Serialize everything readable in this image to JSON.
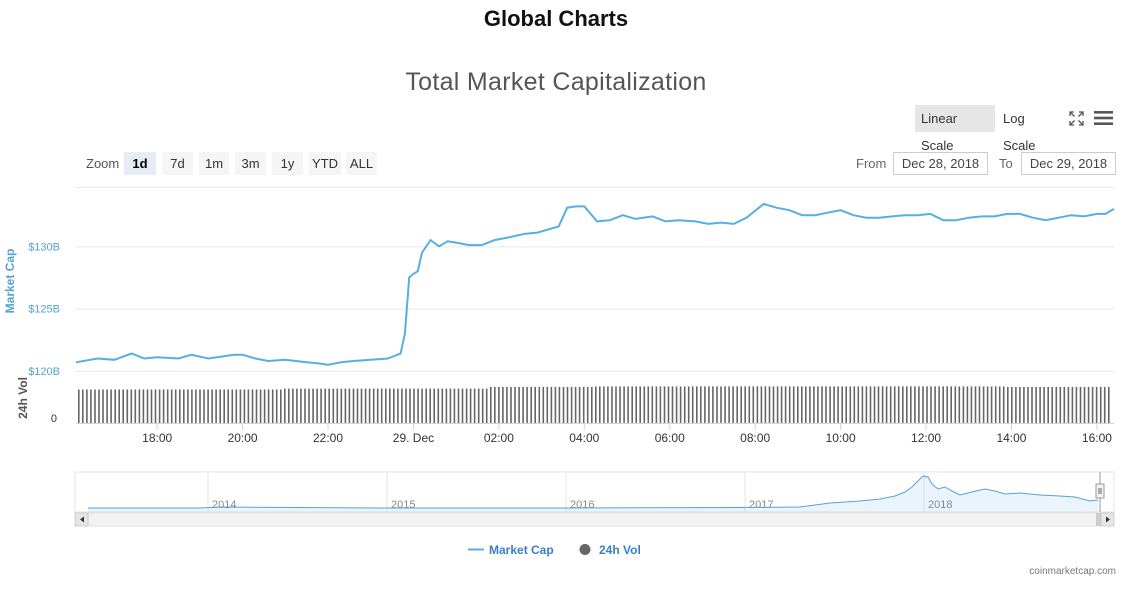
{
  "page": {
    "title": "Global Charts"
  },
  "toolbar": {
    "linear_scale": "Linear Scale",
    "log_scale": "Log Scale",
    "fullscreen_icon": "fullscreen-icon",
    "menu_icon": "hamburger-menu-icon"
  },
  "zoom": {
    "label": "Zoom",
    "options": [
      "1d",
      "7d",
      "1m",
      "3m",
      "1y",
      "YTD",
      "ALL"
    ],
    "selected": "1d"
  },
  "range": {
    "from_label": "From",
    "from_value": "Dec 28, 2018",
    "to_label": "To",
    "to_value": "Dec 29, 2018"
  },
  "chart_data": {
    "type": "line",
    "title": "Total Market Capitalization",
    "y_axis": {
      "label": "Market Cap",
      "ticks": [
        120,
        125,
        130
      ],
      "tick_labels": [
        "$120B",
        "$125B",
        "$130B"
      ],
      "range": [
        120,
        135
      ],
      "color": "#55a2d5"
    },
    "vol_axis": {
      "label": "24h Vol",
      "tick_labels": [
        "0"
      ]
    },
    "x_axis": {
      "tick_labels": [
        "18:00",
        "20:00",
        "22:00",
        "29. Dec",
        "02:00",
        "04:00",
        "06:00",
        "08:00",
        "10:00",
        "12:00",
        "14:00",
        "16:00"
      ],
      "tick_hours": [
        18,
        20,
        22,
        24,
        26,
        28,
        30,
        32,
        34,
        36,
        38,
        40
      ],
      "range_hours": [
        16.1,
        40.4
      ]
    },
    "series": [
      {
        "name": "Market Cap",
        "color": "#55b0e1",
        "x_hours": [
          16.1,
          16.6,
          17.0,
          17.4,
          17.7,
          18.0,
          18.5,
          18.8,
          19.2,
          19.6,
          19.8,
          20.0,
          20.3,
          20.6,
          21.0,
          21.5,
          21.8,
          22.0,
          22.3,
          22.6,
          23.0,
          23.4,
          23.7,
          23.8,
          23.9,
          24.0,
          24.1,
          24.2,
          24.4,
          24.6,
          24.8,
          25.0,
          25.3,
          25.6,
          25.9,
          26.2,
          26.6,
          26.9,
          27.2,
          27.4,
          27.6,
          27.8,
          28.0,
          28.3,
          28.6,
          28.9,
          29.2,
          29.6,
          29.9,
          30.2,
          30.6,
          30.9,
          31.2,
          31.5,
          31.8,
          32.2,
          32.5,
          32.8,
          33.1,
          33.4,
          33.7,
          34.0,
          34.3,
          34.6,
          34.9,
          35.2,
          35.5,
          35.8,
          36.1,
          36.4,
          36.7,
          37.0,
          37.3,
          37.6,
          37.9,
          38.2,
          38.5,
          38.8,
          39.1,
          39.4,
          39.7,
          40.0,
          40.2,
          40.4
        ],
        "values": [
          120.7,
          121.0,
          120.9,
          121.4,
          121.0,
          121.1,
          121.0,
          121.3,
          121.0,
          121.2,
          121.3,
          121.3,
          121.0,
          120.8,
          120.9,
          120.7,
          120.6,
          120.5,
          120.7,
          120.8,
          120.9,
          121.0,
          121.4,
          123.0,
          127.5,
          127.8,
          128.0,
          129.5,
          130.5,
          130.0,
          130.4,
          130.3,
          130.1,
          130.1,
          130.5,
          130.7,
          131.0,
          131.1,
          131.4,
          131.6,
          133.1,
          133.2,
          133.2,
          132.0,
          132.1,
          132.5,
          132.2,
          132.4,
          132.0,
          132.1,
          132.0,
          131.8,
          131.9,
          131.8,
          132.3,
          133.4,
          133.1,
          132.9,
          132.5,
          132.5,
          132.7,
          132.9,
          132.5,
          132.3,
          132.3,
          132.4,
          132.5,
          132.5,
          132.6,
          132.1,
          132.1,
          132.3,
          132.4,
          132.4,
          132.6,
          132.6,
          132.3,
          132.1,
          132.3,
          132.5,
          132.4,
          132.6,
          132.6,
          133.0
        ]
      },
      {
        "name": "24h Vol",
        "color": "#666666",
        "type": "column",
        "x_hours_start": 16.1,
        "x_hours_end": 40.4,
        "relative_levels": [
          0.78,
          0.78,
          0.8,
          0.8,
          0.84,
          0.85,
          0.85,
          0.85,
          0.85,
          0.84
        ]
      }
    ],
    "navigator": {
      "year_labels": [
        "2014",
        "2015",
        "2016",
        "2017",
        "2018"
      ]
    },
    "legend": {
      "items": [
        "Market Cap",
        "24h Vol"
      ],
      "position": "bottom-center"
    },
    "grid": true,
    "credits": "coinmarketcap.com"
  }
}
